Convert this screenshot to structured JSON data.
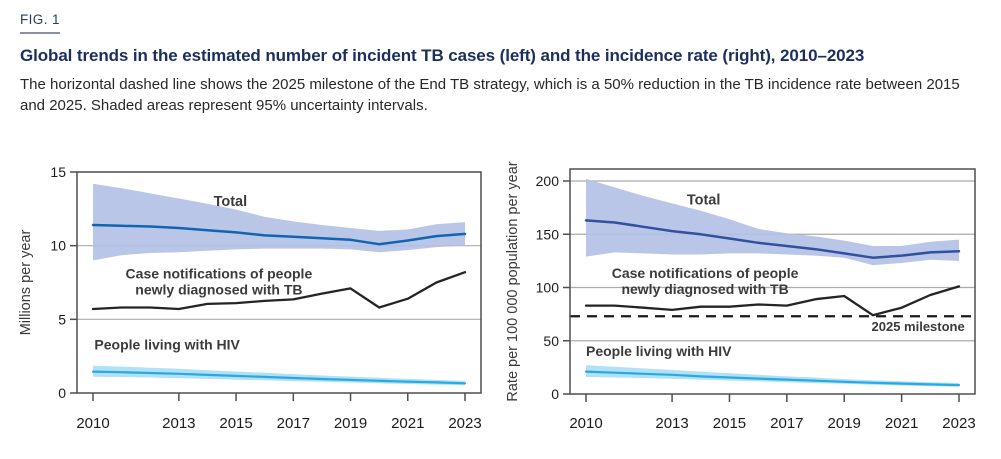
{
  "figure": {
    "label": "FIG. 1",
    "title": "Global trends in the estimated number of incident TB cases (left) and the incidence rate (right), 2010–2023",
    "description": "The horizontal dashed line shows the 2025 milestone of the End TB strategy, which is a 50% reduction in the TB incidence rate between 2015 and 2025. Shaded areas represent 95% uncertainty intervals."
  },
  "colors": {
    "band_blue": "#b1c0e4",
    "total_line_left": "#1264b2",
    "total_line_right": "#31509e",
    "notifications_line": "#242424",
    "hiv_line": "#29a9e1",
    "hiv_band": "#a9ddf6",
    "milestone_line": "#1a1a1a",
    "grid": "#a9abae",
    "frame": "#4e4f51",
    "tick_text": "#1c1c1c",
    "annotation_text": "#3b3b3b",
    "axis_title_text": "#3a3a3a",
    "title_navy": "#1b2f5e"
  },
  "chart_data": [
    {
      "type": "line",
      "position": "left",
      "ylabel": "Millions per year",
      "ylim": [
        0,
        15
      ],
      "yticks": [
        0,
        5,
        10,
        15
      ],
      "x": [
        2010,
        2011,
        2012,
        2013,
        2014,
        2015,
        2016,
        2017,
        2018,
        2019,
        2020,
        2021,
        2022,
        2023
      ],
      "xticks": [
        2010,
        2013,
        2015,
        2017,
        2019,
        2021,
        2023
      ],
      "grid": true,
      "milestone_value": null,
      "series": [
        {
          "name": "Total",
          "name_key": "total",
          "color": "#1264b2",
          "width": 2.5,
          "values": [
            11.4,
            11.35,
            11.3,
            11.2,
            11.05,
            10.9,
            10.7,
            10.6,
            10.5,
            10.4,
            10.1,
            10.35,
            10.65,
            10.8
          ],
          "band": {
            "color": "#b1c0e4",
            "upper": [
              14.2,
              13.9,
              13.55,
              13.2,
              12.85,
              12.45,
              11.95,
              11.65,
              11.4,
              11.2,
              11.0,
              11.1,
              11.45,
              11.6
            ],
            "lower": [
              9.0,
              9.35,
              9.5,
              9.55,
              9.65,
              9.75,
              9.8,
              9.8,
              9.8,
              9.75,
              9.55,
              9.7,
              9.9,
              10.0
            ]
          }
        },
        {
          "name": "Case notifications of people newly diagnosed with TB",
          "name_key": "notifications",
          "color": "#242424",
          "width": 2.3,
          "values": [
            5.7,
            5.8,
            5.8,
            5.7,
            6.05,
            6.1,
            6.25,
            6.35,
            6.75,
            7.1,
            5.8,
            6.4,
            7.5,
            8.2
          ],
          "band": null
        },
        {
          "name": "People living with HIV",
          "name_key": "hiv",
          "color": "#29a9e1",
          "width": 2.2,
          "values": [
            1.45,
            1.41,
            1.36,
            1.3,
            1.23,
            1.16,
            1.09,
            1.02,
            0.95,
            0.89,
            0.83,
            0.77,
            0.72,
            0.66
          ],
          "band": {
            "color": "#a9ddf6",
            "upper": [
              1.85,
              1.79,
              1.72,
              1.64,
              1.55,
              1.46,
              1.37,
              1.28,
              1.19,
              1.11,
              1.03,
              0.96,
              0.89,
              0.82
            ],
            "lower": [
              1.1,
              1.08,
              1.05,
              1.01,
              0.96,
              0.91,
              0.86,
              0.81,
              0.76,
              0.71,
              0.66,
              0.61,
              0.57,
              0.53
            ]
          }
        }
      ],
      "annotations": [
        {
          "id": "total-label",
          "lines": [
            "Total"
          ],
          "year": 2014.8,
          "value": 12.7,
          "anchor": "middle",
          "bold": true,
          "size": 14.5
        },
        {
          "id": "notifications-label",
          "lines": [
            "Case notifications of people",
            "newly diagnosed with TB"
          ],
          "year": 2014.4,
          "value": 7.78,
          "anchor": "middle",
          "bold": true,
          "size": 14
        },
        {
          "id": "hiv-label",
          "lines": [
            "People living with HIV"
          ],
          "year": 2010.05,
          "value": 2.95,
          "anchor": "start",
          "bold": true,
          "size": 14
        }
      ]
    },
    {
      "type": "line",
      "position": "right",
      "ylabel": "Rate per 100 000 population per year",
      "ylim": [
        0,
        210
      ],
      "yticks": [
        0,
        50,
        100,
        150,
        200
      ],
      "x": [
        2010,
        2011,
        2012,
        2013,
        2014,
        2015,
        2016,
        2017,
        2018,
        2019,
        2020,
        2021,
        2022,
        2023
      ],
      "xticks": [
        2010,
        2013,
        2015,
        2017,
        2019,
        2021,
        2023
      ],
      "grid": true,
      "milestone_value": 73,
      "series": [
        {
          "name": "Total",
          "name_key": "total",
          "color": "#31509e",
          "width": 2.5,
          "values": [
            163,
            161,
            157,
            153,
            150,
            146,
            142,
            139,
            136,
            132,
            128,
            130,
            133,
            134
          ],
          "band": {
            "color": "#b1c0e4",
            "upper": [
              202,
              194,
              186,
              179,
              172,
              164,
              155,
              151,
              148,
              144,
              139,
              139,
              143,
              145
            ],
            "lower": [
              129,
              133,
              132,
              131,
              131,
              132,
              132,
              131,
              130,
              128,
              121,
              123,
              126,
              125
            ]
          }
        },
        {
          "name": "Case notifications of people newly diagnosed with TB",
          "name_key": "notifications",
          "color": "#242424",
          "width": 2.3,
          "values": [
            83,
            83,
            81,
            79,
            82,
            82,
            84,
            83,
            89,
            92,
            74,
            81,
            93,
            101
          ],
          "band": null
        },
        {
          "name": "People living with HIV",
          "name_key": "hiv",
          "color": "#29a9e1",
          "width": 2.2,
          "values": [
            21,
            20,
            19,
            18,
            16.5,
            15.5,
            14.5,
            13.5,
            12.5,
            11.5,
            10.5,
            9.8,
            9.0,
            8.4
          ],
          "band": {
            "color": "#a9ddf6",
            "upper": [
              27,
              25.5,
              24,
              22.5,
              21,
              19.5,
              18,
              16.5,
              15.5,
              14,
              13,
              12,
              11,
              10.3
            ],
            "lower": [
              16,
              15.5,
              15,
              14.3,
              13.5,
              12.7,
              11.9,
              11,
              10.2,
              9.5,
              8.7,
              8,
              7.4,
              6.9
            ]
          }
        }
      ],
      "annotations": [
        {
          "id": "total-label",
          "lines": [
            "Total"
          ],
          "year": 2014.1,
          "value": 178,
          "anchor": "middle",
          "bold": true,
          "size": 14.5
        },
        {
          "id": "notifications-label",
          "lines": [
            "Case notifications of people",
            "newly diagnosed with TB"
          ],
          "year": 2014.15,
          "value": 109,
          "anchor": "middle",
          "bold": true,
          "size": 14
        },
        {
          "id": "hiv-label",
          "lines": [
            "People living with HIV"
          ],
          "year": 2010.0,
          "value": 35.5,
          "anchor": "start",
          "bold": true,
          "size": 14
        },
        {
          "id": "milestone-label",
          "lines": [
            "2025 milestone"
          ],
          "year": 2023.2,
          "value": 59,
          "anchor": "end",
          "bold": true,
          "size": 13
        }
      ]
    }
  ]
}
